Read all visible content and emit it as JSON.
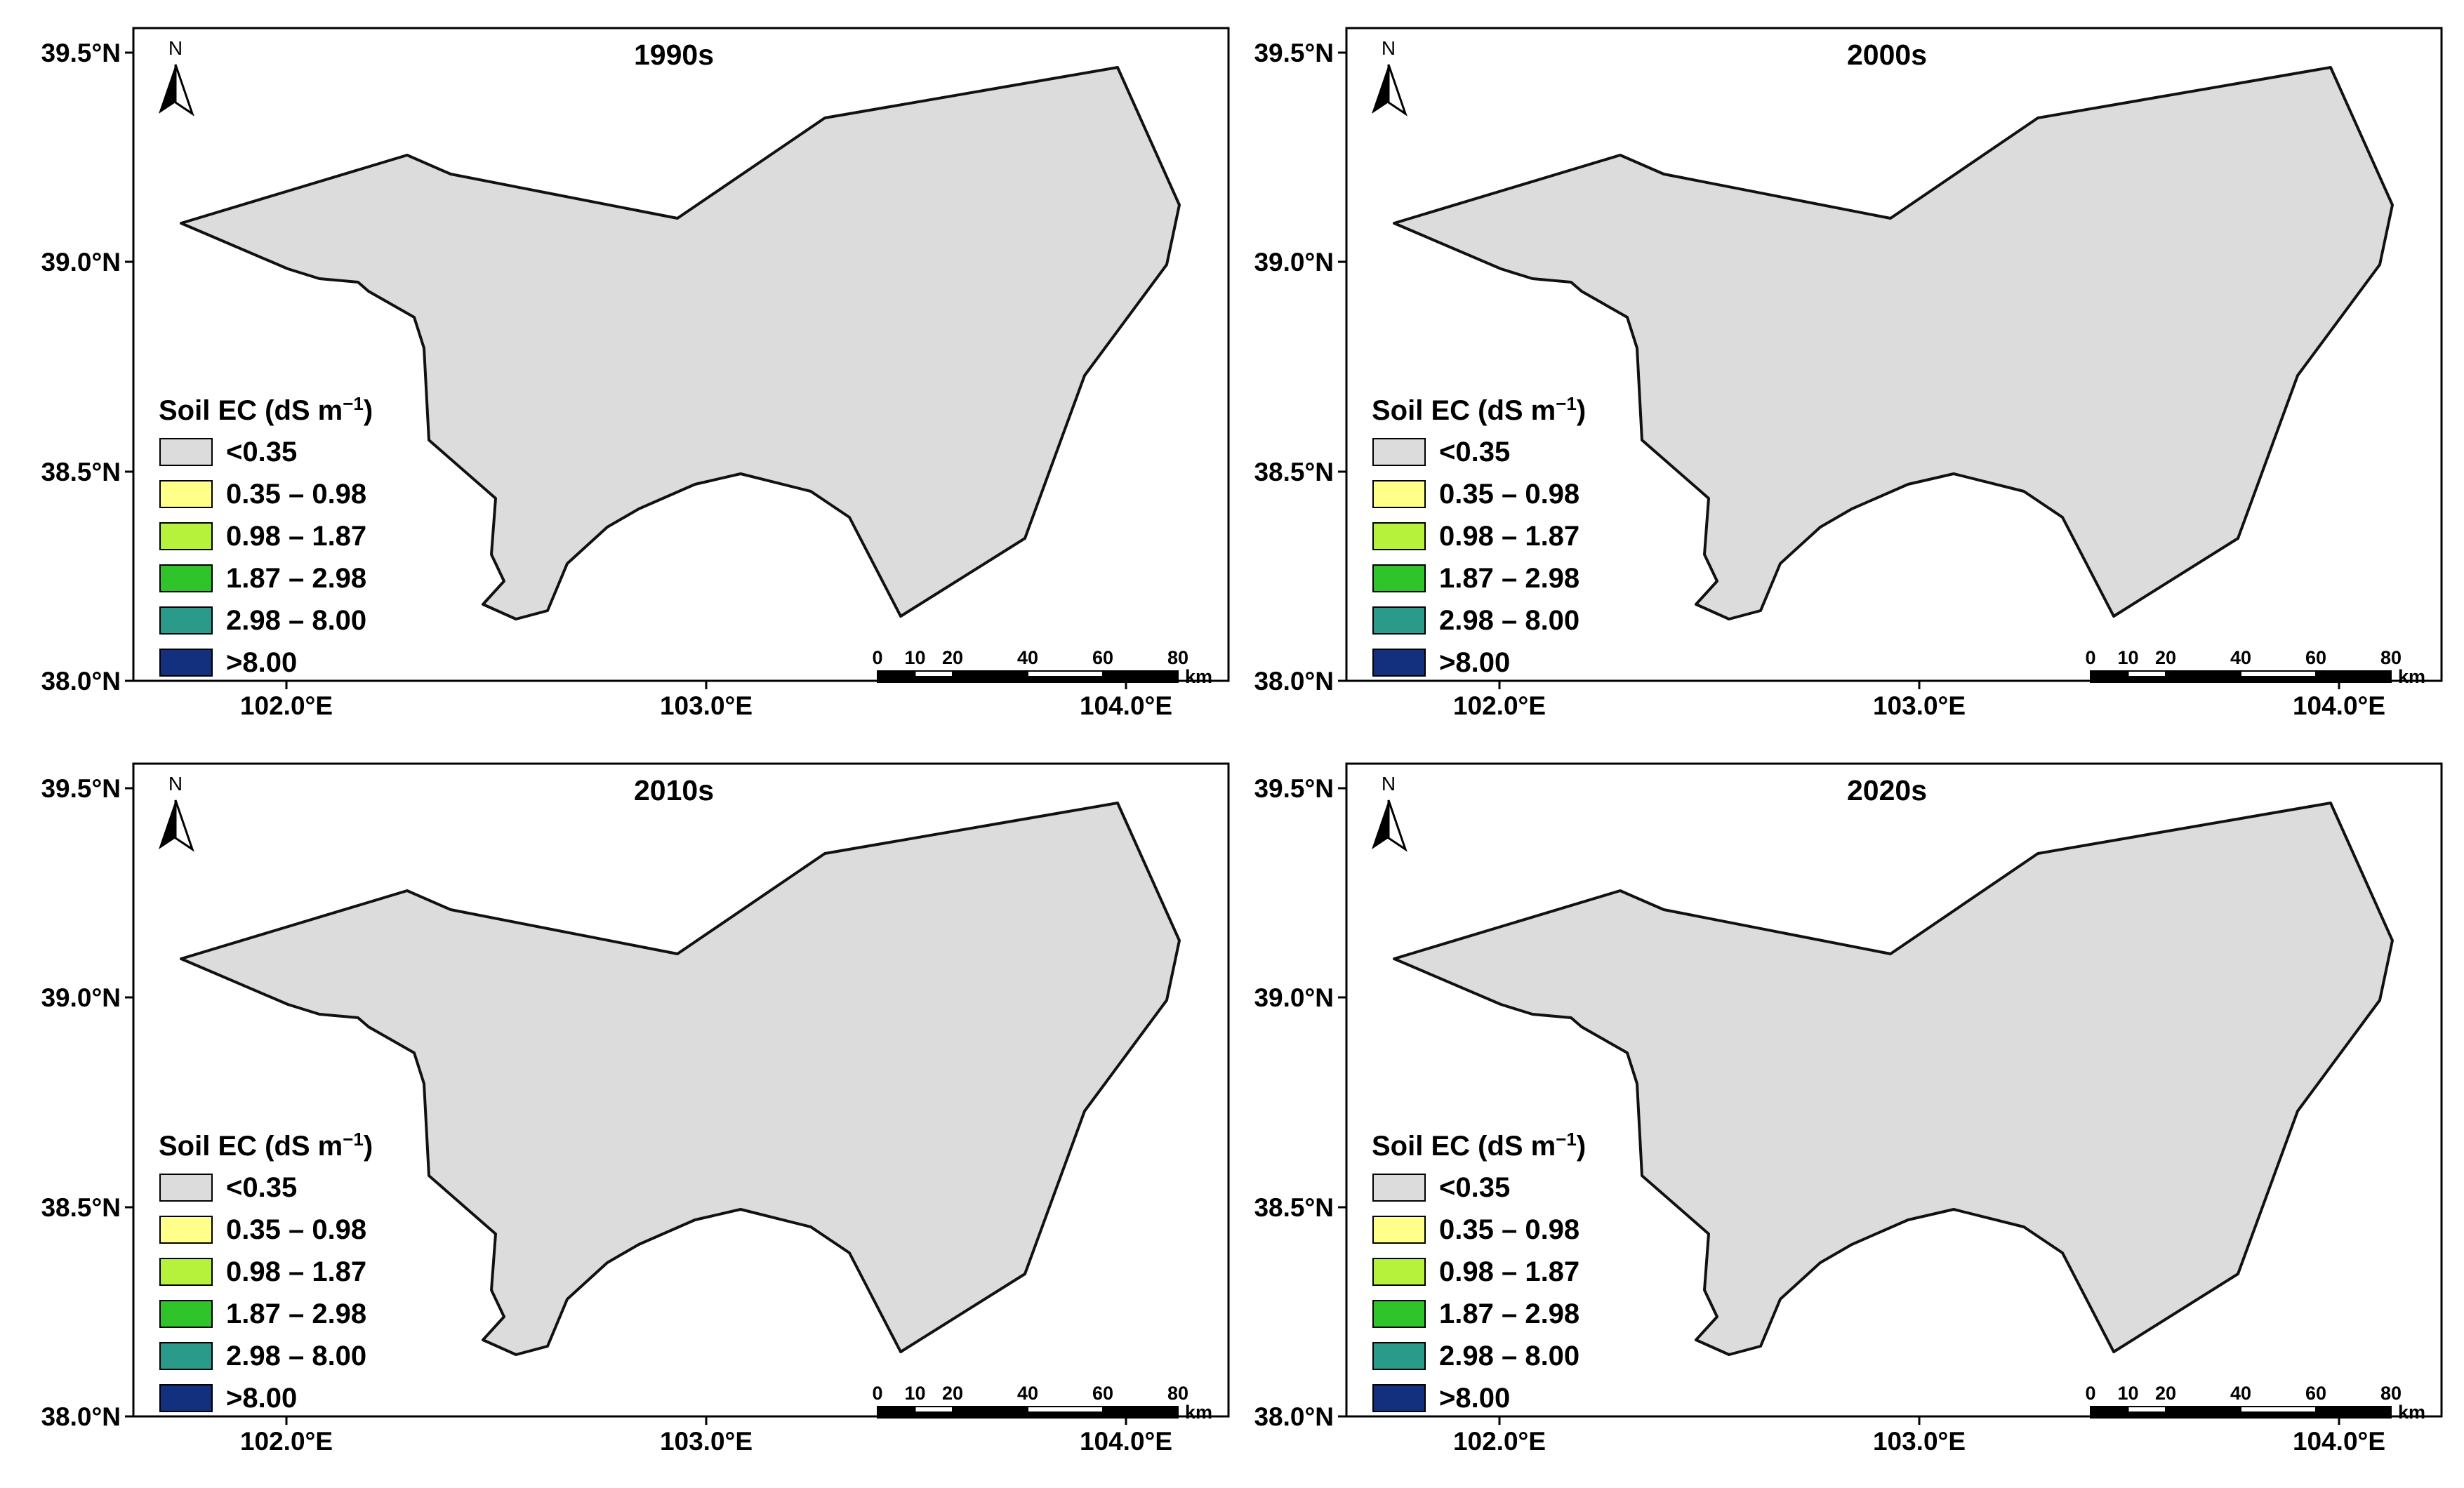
{
  "figure": {
    "legend": {
      "title": "Soil EC (dS m",
      "title_sup": "−1",
      "title_end": ")",
      "classes": [
        {
          "label": "<0.35",
          "color": "#dcdcdc"
        },
        {
          "label": "0.35 – 0.98",
          "color": "#ffff8a"
        },
        {
          "label": "0.98 – 1.87",
          "color": "#b6f23b"
        },
        {
          "label": "1.87 – 2.98",
          "color": "#2fc42a"
        },
        {
          "label": "2.98 – 8.00",
          "color": "#2a9a8a"
        },
        {
          "label": ">8.00",
          "color": "#12307e"
        }
      ]
    },
    "axes": {
      "x_ticks": [
        "102.0°E",
        "103.0°E",
        "104.0°E"
      ],
      "y_ticks": [
        "39.5°N",
        "39.0°N",
        "38.5°N",
        "38.0°N"
      ]
    },
    "north_arrow": "N",
    "scale_bar": {
      "labels": [
        "0",
        "10",
        "20",
        "40",
        "60",
        "80"
      ],
      "unit": "km"
    },
    "panels": [
      {
        "title": "1990s"
      },
      {
        "title": "2000s"
      },
      {
        "title": "2010s"
      },
      {
        "title": "2020s"
      }
    ]
  }
}
